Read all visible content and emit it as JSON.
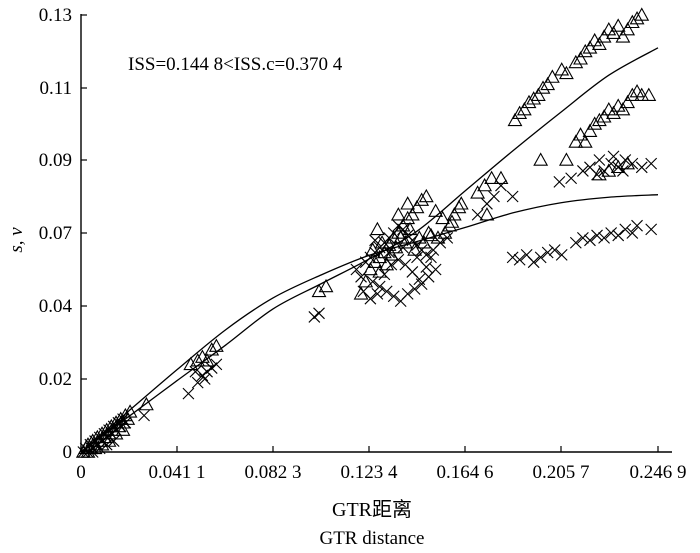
{
  "chart_data": {
    "type": "scatter",
    "title": "",
    "annotation": "ISS=0.144 8<ISS.c=0.370 4",
    "xlabel": "GTR距离",
    "xlabel_en": "GTR distance",
    "ylabel": "s, v",
    "xlim": [
      0,
      0.2469
    ],
    "ylim": [
      0,
      0.13
    ],
    "xticks": [
      0,
      0.0411,
      0.0823,
      0.1234,
      0.1646,
      0.2057,
      0.2469
    ],
    "xtick_labels": [
      "0",
      "0.041 1",
      "0.082 3",
      "0.123 4",
      "0.164 6",
      "0.205 7",
      "0.246 9"
    ],
    "yticks": [
      0,
      0.02,
      0.04,
      0.07,
      0.09,
      0.11,
      0.13
    ],
    "ytick_labels": [
      "0",
      "0.02",
      "0.04",
      "0.07",
      "0.09",
      "0.11",
      "0.13"
    ],
    "grid": false,
    "series": [
      {
        "marker": "triangle",
        "points": [
          [
            0.001,
            0.0
          ],
          [
            0.002,
            0.001
          ],
          [
            0.003,
            0.002
          ],
          [
            0.004,
            0.001
          ],
          [
            0.005,
            0.003
          ],
          [
            0.006,
            0.002
          ],
          [
            0.007,
            0.004
          ],
          [
            0.008,
            0.003
          ],
          [
            0.009,
            0.005
          ],
          [
            0.01,
            0.004
          ],
          [
            0.011,
            0.006
          ],
          [
            0.012,
            0.005
          ],
          [
            0.013,
            0.007
          ],
          [
            0.014,
            0.006
          ],
          [
            0.015,
            0.008
          ],
          [
            0.016,
            0.007
          ],
          [
            0.017,
            0.009
          ],
          [
            0.018,
            0.008
          ],
          [
            0.019,
            0.01
          ],
          [
            0.02,
            0.009
          ],
          [
            0.003,
            0.0
          ],
          [
            0.006,
            0.001
          ],
          [
            0.009,
            0.002
          ],
          [
            0.012,
            0.003
          ],
          [
            0.015,
            0.005
          ],
          [
            0.018,
            0.006
          ],
          [
            0.021,
            0.011
          ],
          [
            0.028,
            0.013
          ],
          [
            0.047,
            0.024
          ],
          [
            0.05,
            0.025
          ],
          [
            0.052,
            0.026
          ],
          [
            0.054,
            0.025
          ],
          [
            0.056,
            0.028
          ],
          [
            0.058,
            0.029
          ],
          [
            0.102,
            0.046
          ],
          [
            0.105,
            0.048
          ],
          [
            0.12,
            0.045
          ],
          [
            0.122,
            0.05
          ],
          [
            0.124,
            0.055
          ],
          [
            0.126,
            0.058
          ],
          [
            0.128,
            0.06
          ],
          [
            0.13,
            0.062
          ],
          [
            0.132,
            0.065
          ],
          [
            0.134,
            0.068
          ],
          [
            0.136,
            0.07
          ],
          [
            0.138,
            0.072
          ],
          [
            0.14,
            0.074
          ],
          [
            0.142,
            0.075
          ],
          [
            0.144,
            0.077
          ],
          [
            0.146,
            0.079
          ],
          [
            0.148,
            0.08
          ],
          [
            0.125,
            0.063
          ],
          [
            0.129,
            0.066
          ],
          [
            0.133,
            0.061
          ],
          [
            0.137,
            0.068
          ],
          [
            0.141,
            0.071
          ],
          [
            0.145,
            0.068
          ],
          [
            0.149,
            0.07
          ],
          [
            0.152,
            0.076
          ],
          [
            0.155,
            0.074
          ],
          [
            0.158,
            0.072
          ],
          [
            0.16,
            0.075
          ],
          [
            0.162,
            0.077
          ],
          [
            0.128,
            0.054
          ],
          [
            0.131,
            0.057
          ],
          [
            0.135,
            0.064
          ],
          [
            0.139,
            0.066
          ],
          [
            0.143,
            0.063
          ],
          [
            0.147,
            0.066
          ],
          [
            0.15,
            0.069
          ],
          [
            0.153,
            0.068
          ],
          [
            0.156,
            0.07
          ],
          [
            0.159,
            0.073
          ],
          [
            0.163,
            0.078
          ],
          [
            0.136,
            0.075
          ],
          [
            0.14,
            0.078
          ],
          [
            0.127,
            0.071
          ],
          [
            0.17,
            0.081
          ],
          [
            0.173,
            0.083
          ],
          [
            0.176,
            0.085
          ],
          [
            0.18,
            0.085
          ],
          [
            0.174,
            0.075
          ],
          [
            0.186,
            0.101
          ],
          [
            0.188,
            0.103
          ],
          [
            0.19,
            0.104
          ],
          [
            0.192,
            0.106
          ],
          [
            0.194,
            0.107
          ],
          [
            0.196,
            0.108
          ],
          [
            0.198,
            0.11
          ],
          [
            0.2,
            0.111
          ],
          [
            0.202,
            0.113
          ],
          [
            0.206,
            0.115
          ],
          [
            0.208,
            0.114
          ],
          [
            0.212,
            0.117
          ],
          [
            0.214,
            0.118
          ],
          [
            0.216,
            0.12
          ],
          [
            0.218,
            0.121
          ],
          [
            0.22,
            0.123
          ],
          [
            0.222,
            0.122
          ],
          [
            0.224,
            0.124
          ],
          [
            0.226,
            0.126
          ],
          [
            0.228,
            0.125
          ],
          [
            0.23,
            0.127
          ],
          [
            0.232,
            0.124
          ],
          [
            0.234,
            0.126
          ],
          [
            0.236,
            0.128
          ],
          [
            0.238,
            0.129
          ],
          [
            0.24,
            0.13
          ],
          [
            0.212,
            0.095
          ],
          [
            0.214,
            0.097
          ],
          [
            0.216,
            0.095
          ],
          [
            0.218,
            0.098
          ],
          [
            0.22,
            0.1
          ],
          [
            0.222,
            0.101
          ],
          [
            0.224,
            0.102
          ],
          [
            0.226,
            0.104
          ],
          [
            0.228,
            0.103
          ],
          [
            0.23,
            0.105
          ],
          [
            0.232,
            0.104
          ],
          [
            0.234,
            0.106
          ],
          [
            0.236,
            0.108
          ],
          [
            0.238,
            0.109
          ],
          [
            0.24,
            0.108
          ],
          [
            0.243,
            0.108
          ],
          [
            0.197,
            0.09
          ],
          [
            0.208,
            0.09
          ],
          [
            0.222,
            0.086
          ],
          [
            0.226,
            0.087
          ],
          [
            0.23,
            0.088
          ],
          [
            0.234,
            0.089
          ]
        ]
      },
      {
        "marker": "cross",
        "points": [
          [
            0.001,
            0.0
          ],
          [
            0.002,
            0.001
          ],
          [
            0.003,
            0.0
          ],
          [
            0.004,
            0.002
          ],
          [
            0.005,
            0.001
          ],
          [
            0.006,
            0.003
          ],
          [
            0.007,
            0.002
          ],
          [
            0.008,
            0.004
          ],
          [
            0.009,
            0.003
          ],
          [
            0.01,
            0.005
          ],
          [
            0.011,
            0.004
          ],
          [
            0.012,
            0.006
          ],
          [
            0.013,
            0.005
          ],
          [
            0.014,
            0.007
          ],
          [
            0.015,
            0.006
          ],
          [
            0.016,
            0.008
          ],
          [
            0.017,
            0.007
          ],
          [
            0.018,
            0.009
          ],
          [
            0.019,
            0.008
          ],
          [
            0.005,
            0.0
          ],
          [
            0.008,
            0.001
          ],
          [
            0.011,
            0.002
          ],
          [
            0.014,
            0.003
          ],
          [
            0.027,
            0.01
          ],
          [
            0.046,
            0.016
          ],
          [
            0.05,
            0.019
          ],
          [
            0.052,
            0.021
          ],
          [
            0.054,
            0.022
          ],
          [
            0.056,
            0.023
          ],
          [
            0.058,
            0.024
          ],
          [
            0.049,
            0.022
          ],
          [
            0.053,
            0.02
          ],
          [
            0.1,
            0.037
          ],
          [
            0.102,
            0.038
          ],
          [
            0.118,
            0.055
          ],
          [
            0.12,
            0.052
          ],
          [
            0.122,
            0.058
          ],
          [
            0.124,
            0.06
          ],
          [
            0.126,
            0.062
          ],
          [
            0.128,
            0.064
          ],
          [
            0.13,
            0.066
          ],
          [
            0.132,
            0.068
          ],
          [
            0.134,
            0.07
          ],
          [
            0.136,
            0.072
          ],
          [
            0.138,
            0.071
          ],
          [
            0.14,
            0.069
          ],
          [
            0.142,
            0.067
          ],
          [
            0.144,
            0.065
          ],
          [
            0.146,
            0.063
          ],
          [
            0.148,
            0.061
          ],
          [
            0.15,
            0.06
          ],
          [
            0.125,
            0.05
          ],
          [
            0.128,
            0.048
          ],
          [
            0.131,
            0.046
          ],
          [
            0.134,
            0.044
          ],
          [
            0.137,
            0.042
          ],
          [
            0.14,
            0.045
          ],
          [
            0.143,
            0.047
          ],
          [
            0.146,
            0.049
          ],
          [
            0.149,
            0.052
          ],
          [
            0.152,
            0.055
          ],
          [
            0.121,
            0.046
          ],
          [
            0.124,
            0.043
          ],
          [
            0.127,
            0.045
          ],
          [
            0.13,
            0.053
          ],
          [
            0.133,
            0.057
          ],
          [
            0.136,
            0.059
          ],
          [
            0.139,
            0.057
          ],
          [
            0.142,
            0.054
          ],
          [
            0.145,
            0.051
          ],
          [
            0.148,
            0.056
          ],
          [
            0.151,
            0.063
          ],
          [
            0.154,
            0.066
          ],
          [
            0.157,
            0.068
          ],
          [
            0.126,
            0.067
          ],
          [
            0.132,
            0.062
          ],
          [
            0.138,
            0.064
          ],
          [
            0.144,
            0.06
          ],
          [
            0.17,
            0.075
          ],
          [
            0.174,
            0.078
          ],
          [
            0.177,
            0.08
          ],
          [
            0.18,
            0.083
          ],
          [
            0.185,
            0.08
          ],
          [
            0.185,
            0.06
          ],
          [
            0.188,
            0.059
          ],
          [
            0.191,
            0.061
          ],
          [
            0.194,
            0.058
          ],
          [
            0.197,
            0.06
          ],
          [
            0.2,
            0.062
          ],
          [
            0.203,
            0.063
          ],
          [
            0.206,
            0.061
          ],
          [
            0.212,
            0.066
          ],
          [
            0.215,
            0.068
          ],
          [
            0.218,
            0.067
          ],
          [
            0.221,
            0.069
          ],
          [
            0.224,
            0.068
          ],
          [
            0.227,
            0.07
          ],
          [
            0.23,
            0.069
          ],
          [
            0.233,
            0.071
          ],
          [
            0.236,
            0.07
          ],
          [
            0.238,
            0.072
          ],
          [
            0.244,
            0.071
          ],
          [
            0.205,
            0.084
          ],
          [
            0.21,
            0.085
          ],
          [
            0.215,
            0.087
          ],
          [
            0.218,
            0.088
          ],
          [
            0.221,
            0.086
          ],
          [
            0.224,
            0.087
          ],
          [
            0.227,
            0.089
          ],
          [
            0.23,
            0.088
          ],
          [
            0.233,
            0.09
          ],
          [
            0.236,
            0.089
          ],
          [
            0.24,
            0.088
          ],
          [
            0.244,
            0.089
          ],
          [
            0.228,
            0.091
          ],
          [
            0.222,
            0.09
          ],
          [
            0.232,
            0.087
          ]
        ]
      }
    ],
    "curves": [
      {
        "points": [
          [
            0,
            0
          ],
          [
            0.02,
            0.0095
          ],
          [
            0.041,
            0.0195
          ],
          [
            0.062,
            0.0293
          ],
          [
            0.0823,
            0.0392
          ],
          [
            0.103,
            0.0492
          ],
          [
            0.1234,
            0.0593
          ],
          [
            0.144,
            0.0705
          ],
          [
            0.1646,
            0.0815
          ],
          [
            0.185,
            0.0925
          ],
          [
            0.2057,
            0.1033
          ],
          [
            0.226,
            0.1135
          ],
          [
            0.2469,
            0.121
          ]
        ]
      },
      {
        "points": [
          [
            0,
            0
          ],
          [
            0.02,
            0.011
          ],
          [
            0.041,
            0.0225
          ],
          [
            0.062,
            0.0335
          ],
          [
            0.0823,
            0.0433
          ],
          [
            0.103,
            0.0528
          ],
          [
            0.1234,
            0.0608
          ],
          [
            0.144,
            0.0665
          ],
          [
            0.1646,
            0.0715
          ],
          [
            0.185,
            0.0755
          ],
          [
            0.2057,
            0.0783
          ],
          [
            0.226,
            0.0798
          ],
          [
            0.2469,
            0.0805
          ]
        ]
      }
    ]
  }
}
